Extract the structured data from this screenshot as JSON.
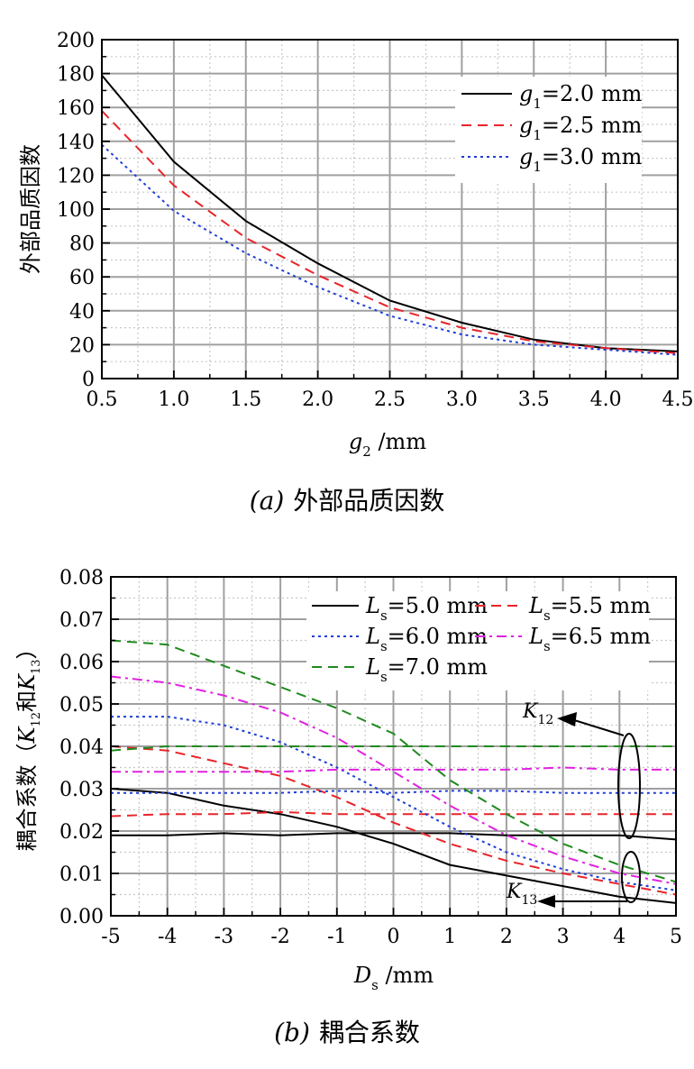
{
  "charts": [
    {
      "caption_label": "(a)",
      "caption_text": "外部品质因数",
      "ylabel": "外部品质因数",
      "xlabel_symbol": "g",
      "xlabel_sub": "2",
      "xlabel_unit": " /mm",
      "legend_position": "top-right",
      "grid": true
    },
    {
      "caption_label": "(b)",
      "caption_text": "耦合系数",
      "ylabel_prefix": "耦合系数（",
      "ylabel_k1": "K",
      "ylabel_k1_sub": "12",
      "ylabel_and": "和",
      "ylabel_k2": "K",
      "ylabel_k2_sub": "13",
      "ylabel_suffix": "）",
      "xlabel_symbol": "D",
      "xlabel_sub": "s",
      "xlabel_unit": " /mm",
      "annotation_k12": "K",
      "annotation_k12_sub": "12",
      "annotation_k13": "K",
      "annotation_k13_sub": "13",
      "legend_position": "top-right",
      "grid": true
    }
  ],
  "chart_data": [
    {
      "type": "line",
      "xlabel": "g2 /mm",
      "ylabel": "外部品质因数",
      "xlim": [
        0.5,
        4.5
      ],
      "ylim": [
        0,
        200
      ],
      "xticks": [
        "0.5",
        "1.0",
        "1.5",
        "2.0",
        "2.5",
        "3.0",
        "3.5",
        "4.0",
        "4.5"
      ],
      "yticks": [
        "0",
        "20",
        "40",
        "60",
        "80",
        "100",
        "120",
        "140",
        "160",
        "180",
        "200"
      ],
      "x": [
        0.5,
        1.0,
        1.5,
        2.0,
        2.5,
        3.0,
        3.5,
        4.0,
        4.5
      ],
      "series": [
        {
          "name": "g1=2.0 mm",
          "label_symbol": "g",
          "label_sub": "1",
          "label_rest": "=2.0 mm",
          "color": "#000000",
          "dash": "solid",
          "values": [
            179,
            128,
            93,
            68,
            46,
            33,
            23,
            18,
            16
          ]
        },
        {
          "name": "g1=2.5 mm",
          "label_symbol": "g",
          "label_sub": "1",
          "label_rest": "=2.5 mm",
          "color": "#e8242a",
          "dash": "dashed",
          "values": [
            158,
            114,
            83,
            61,
            42,
            30,
            22,
            18,
            15
          ]
        },
        {
          "name": "g1=3.0 mm",
          "label_symbol": "g",
          "label_sub": "1",
          "label_rest": "=3.0 mm",
          "color": "#1f3fd6",
          "dash": "dotted",
          "values": [
            138,
            99,
            74,
            54,
            37,
            26,
            20,
            17,
            14
          ]
        }
      ]
    },
    {
      "type": "line",
      "xlabel": "Ds /mm",
      "ylabel": "耦合系数（K12和K13）",
      "xlim": [
        -5,
        5
      ],
      "ylim": [
        0,
        0.08
      ],
      "xticks": [
        "-5",
        "-4",
        "-3",
        "-2",
        "-1",
        "0",
        "1",
        "2",
        "3",
        "4",
        "5"
      ],
      "yticks": [
        "0.00",
        "0.01",
        "0.02",
        "0.03",
        "0.04",
        "0.05",
        "0.06",
        "0.07",
        "0.08"
      ],
      "x": [
        -5,
        -4,
        -3,
        -2,
        -1,
        0,
        1,
        2,
        3,
        4,
        5
      ],
      "series": [
        {
          "name": "Ls=5.0 mm",
          "label_symbol": "L",
          "label_sub": "s",
          "label_rest": "=5.0 mm",
          "color": "#000000",
          "dash": "solid",
          "k12": [
            0.019,
            0.019,
            0.0195,
            0.019,
            0.0195,
            0.0195,
            0.0195,
            0.019,
            0.019,
            0.019,
            0.018
          ],
          "k13": [
            0.03,
            0.029,
            0.026,
            0.024,
            0.021,
            0.017,
            0.012,
            0.0095,
            0.007,
            0.0045,
            0.003
          ]
        },
        {
          "name": "Ls=5.5 mm",
          "label_symbol": "L",
          "label_sub": "s",
          "label_rest": "=5.5 mm",
          "color": "#e8242a",
          "dash": "dashed",
          "k12": [
            0.0235,
            0.024,
            0.024,
            0.0245,
            0.024,
            0.024,
            0.024,
            0.024,
            0.024,
            0.024,
            0.024
          ],
          "k13": [
            0.04,
            0.039,
            0.036,
            0.033,
            0.028,
            0.022,
            0.017,
            0.013,
            0.01,
            0.0075,
            0.005
          ]
        },
        {
          "name": "Ls=6.0 mm",
          "label_symbol": "L",
          "label_sub": "s",
          "label_rest": "=6.0 mm",
          "color": "#1f3fd6",
          "dash": "dotted",
          "k12": [
            0.029,
            0.029,
            0.029,
            0.029,
            0.0295,
            0.029,
            0.0295,
            0.0295,
            0.029,
            0.029,
            0.029
          ],
          "k13": [
            0.047,
            0.047,
            0.045,
            0.041,
            0.035,
            0.028,
            0.021,
            0.015,
            0.011,
            0.008,
            0.006
          ]
        },
        {
          "name": "Ls=6.5 mm",
          "label_symbol": "L",
          "label_sub": "s",
          "label_rest": "=6.5 mm",
          "color": "#e022e0",
          "dash": "dashdot",
          "k12": [
            0.034,
            0.034,
            0.034,
            0.034,
            0.0345,
            0.0345,
            0.0345,
            0.0345,
            0.035,
            0.0345,
            0.0345
          ],
          "k13": [
            0.0565,
            0.055,
            0.052,
            0.048,
            0.042,
            0.034,
            0.026,
            0.019,
            0.014,
            0.01,
            0.0075
          ]
        },
        {
          "name": "Ls=7.0 mm",
          "label_symbol": "L",
          "label_sub": "s",
          "label_rest": "=7.0 mm",
          "color": "#1f8a1f",
          "dash": "dashed",
          "k12": [
            0.039,
            0.04,
            0.04,
            0.04,
            0.04,
            0.04,
            0.04,
            0.04,
            0.04,
            0.04,
            0.04
          ],
          "k13": [
            0.065,
            0.064,
            0.059,
            0.054,
            0.049,
            0.043,
            0.032,
            0.024,
            0.017,
            0.012,
            0.008
          ]
        }
      ]
    }
  ]
}
